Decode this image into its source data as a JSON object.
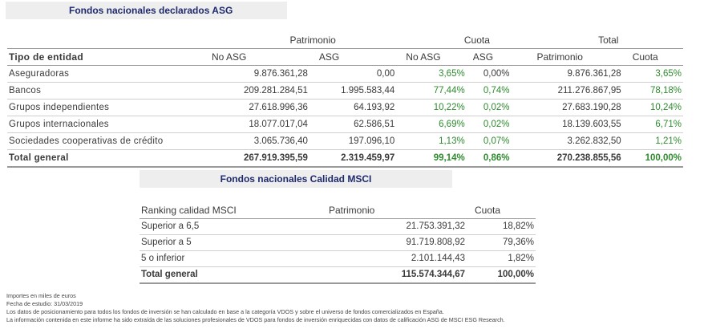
{
  "title1": "Fondos nacionales declarados ASG",
  "table1": {
    "group_headers": {
      "patrimonio": "Patrimonio",
      "cuota": "Cuota",
      "total": "Total"
    },
    "col_headers": {
      "entity": "Tipo de entidad",
      "no_asg": "No ASG",
      "asg": "ASG",
      "cuota_no_asg": "No ASG",
      "cuota_asg": "ASG",
      "total_patrimonio": "Patrimonio",
      "total_cuota": "Cuota"
    },
    "rows": [
      {
        "entity": "Aseguradoras",
        "no_asg": "9.876.361,28",
        "asg": "0,00",
        "cuota_no_asg": "3,65%",
        "cuota_asg": "0,00%",
        "total_patrimonio": "9.876.361,28",
        "total_cuota": "3,65%"
      },
      {
        "entity": "Bancos",
        "no_asg": "209.281.284,51",
        "asg": "1.995.583,44",
        "cuota_no_asg": "77,44%",
        "cuota_asg": "0,74%",
        "total_patrimonio": "211.276.867,95",
        "total_cuota": "78,18%"
      },
      {
        "entity": "Grupos independientes",
        "no_asg": "27.618.996,36",
        "asg": "64.193,92",
        "cuota_no_asg": "10,22%",
        "cuota_asg": "0,02%",
        "total_patrimonio": "27.683.190,28",
        "total_cuota": "10,24%"
      },
      {
        "entity": "Grupos internacionales",
        "no_asg": "18.077.017,04",
        "asg": "62.586,51",
        "cuota_no_asg": "6,69%",
        "cuota_asg": "0,02%",
        "total_patrimonio": "18.139.603,55",
        "total_cuota": "6,71%"
      },
      {
        "entity": "Sociedades cooperativas de crédito",
        "no_asg": "3.065.736,40",
        "asg": "197.096,10",
        "cuota_no_asg": "1,13%",
        "cuota_asg": "0,07%",
        "total_patrimonio": "3.262.832,50",
        "total_cuota": "1,21%"
      }
    ],
    "total": {
      "entity": "Total general",
      "no_asg": "267.919.395,59",
      "asg": "2.319.459,97",
      "cuota_no_asg": "99,14%",
      "cuota_asg": "0,86%",
      "total_patrimonio": "270.238.855,56",
      "total_cuota": "100,00%"
    }
  },
  "title2": "Fondos nacionales Calidad MSCI",
  "table2": {
    "col_headers": {
      "ranking": "Ranking calidad MSCI",
      "patrimonio": "Patrimonio",
      "cuota": "Cuota"
    },
    "rows": [
      {
        "ranking": "Superior a 6,5",
        "patrimonio": "21.753.391,32",
        "cuota": "18,82%"
      },
      {
        "ranking": "Superior a 5",
        "patrimonio": "91.719.808,92",
        "cuota": "79,36%"
      },
      {
        "ranking": "5 o inferior",
        "patrimonio": "2.101.144,43",
        "cuota": "1,82%"
      }
    ],
    "total": {
      "ranking": "Total general",
      "patrimonio": "115.574.344,67",
      "cuota": "100,00%"
    }
  },
  "notes": [
    "Importes en miles de euros",
    "Fecha de estudio: 31/03/2019",
    "Los datos de posicionamiento para todos los fondos de inversión se han calculado en base a la categoría VDOS y sobre el universo de fondos comercializados en España.",
    "La información contenida en este informe ha sido extraída de las soluciones profesionales de VDOS para fondos de inversión enriquecidas con datos de calificación ASG de MSCI ESG Research."
  ]
}
